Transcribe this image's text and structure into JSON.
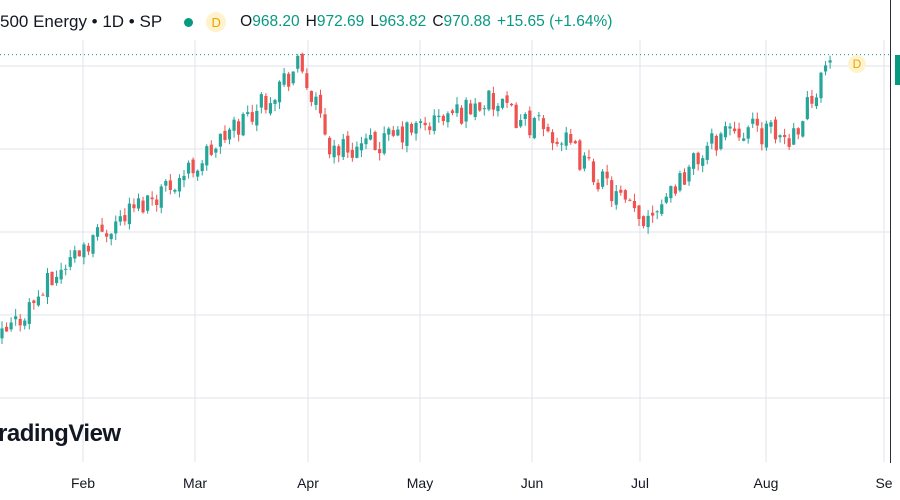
{
  "legend": {
    "title": "500 Energy • 1D • SP",
    "badge": "D",
    "open_label": "O",
    "open": "968.20",
    "high_label": "H",
    "high": "972.69",
    "low_label": "L",
    "low": "963.82",
    "close_label": "C",
    "close": "970.88",
    "change": "+15.65 (+1.64%)"
  },
  "watermark": "radingView",
  "last_bar_badge": "D",
  "colors": {
    "up": "#26a69a",
    "down": "#ef5350",
    "grid": "#e0e3eb",
    "axis_text": "#131722",
    "last_price_line": "#089981"
  },
  "chart_data": {
    "type": "candlestick",
    "interval": "1D",
    "grid": true,
    "x_tick_labels": [
      "Feb",
      "Mar",
      "Apr",
      "May",
      "Jun",
      "Jul",
      "Aug",
      "Se"
    ],
    "last_close": 970.88,
    "close_path_approx": [
      {
        "month": "Jan",
        "close": 660
      },
      {
        "month": "Feb",
        "close": 765
      },
      {
        "month": "Mar",
        "close": 850
      },
      {
        "month": "Apr",
        "close": 960
      },
      {
        "month": "Apr",
        "close": 870
      },
      {
        "month": "May",
        "close": 870
      },
      {
        "month": "May",
        "close": 920
      },
      {
        "month": "Jun",
        "close": 880
      },
      {
        "month": "Jul",
        "close": 790
      },
      {
        "month": "Aug",
        "close": 895
      },
      {
        "month": "Aug",
        "close": 880
      },
      {
        "month": "Aug",
        "close": 970.88
      }
    ]
  }
}
